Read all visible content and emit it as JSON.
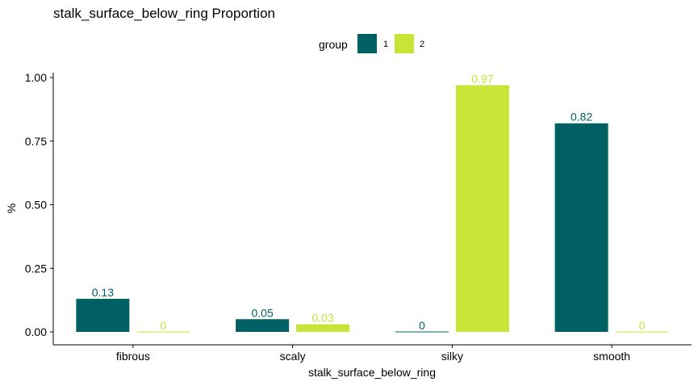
{
  "chart_data": {
    "type": "bar",
    "title": "stalk_surface_below_ring Proportion",
    "xlabel": "stalk_surface_below_ring",
    "ylabel": "%",
    "categories": [
      "fibrous",
      "scaly",
      "silky",
      "smooth"
    ],
    "series": [
      {
        "name": "1",
        "values": [
          0.13,
          0.05,
          0.0,
          0.82
        ],
        "labels": [
          "0.13",
          "0.05",
          "0",
          "0.82"
        ],
        "color": "#006064"
      },
      {
        "name": "2",
        "values": [
          0.0,
          0.03,
          0.97,
          0.0
        ],
        "labels": [
          "0",
          "0.03",
          "0.97",
          "0"
        ],
        "color": "#c6e536"
      }
    ],
    "legend": {
      "title": "group",
      "position": "top"
    },
    "ylim": [
      0,
      1
    ],
    "yticks": [
      0,
      0.25,
      0.5,
      0.75,
      1
    ],
    "ytick_labels": [
      "0.00",
      "0.25",
      "0.50",
      "0.75",
      "1.00"
    ],
    "grid": false
  }
}
